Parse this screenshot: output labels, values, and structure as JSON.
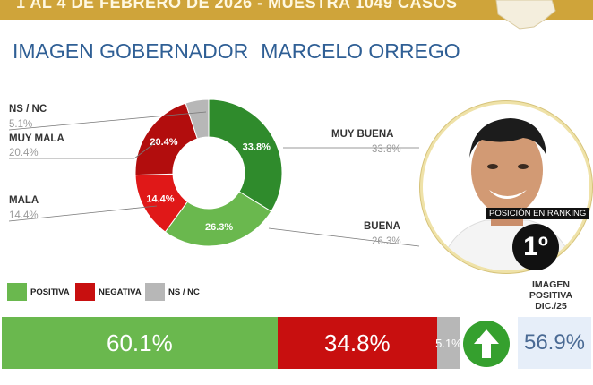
{
  "header": {
    "text": "1 AL 4 DE FEBRERO DE 2026 - MUESTRA 1049 CASOS"
  },
  "title": {
    "part1": "IMAGEN GOBERNADOR",
    "part2": "MARCELO ORREGO"
  },
  "colors": {
    "positiva": "#6ab84e",
    "negativa": "#c80f0f",
    "ns_nc": "#b7b7b7",
    "title": "#2f5f95",
    "gold": "#cfa43a"
  },
  "chart_data": [
    {
      "type": "pie",
      "slices": [
        {
          "label": "MUY BUENA",
          "value": 33.8,
          "display": "33.8%",
          "color": "#2f8b2c"
        },
        {
          "label": "BUENA",
          "value": 26.3,
          "display": "26.3%",
          "color": "#6ab84e"
        },
        {
          "label": "MALA",
          "value": 14.4,
          "display": "14.4%",
          "color": "#e01818"
        },
        {
          "label": "MUY MALA",
          "value": 20.4,
          "display": "20.4%",
          "color": "#b20d0d"
        },
        {
          "label": "NS / NC",
          "value": 5.1,
          "display": "5.1%",
          "color": "#b7b7b7"
        }
      ]
    },
    {
      "type": "bar",
      "orientation": "horizontal-stacked",
      "categories": [
        "POSITIVA",
        "NEGATIVA",
        "NS / NC"
      ],
      "values": [
        60.1,
        34.8,
        5.1
      ],
      "labels": [
        "60.1%",
        "34.8%",
        "5.1%"
      ]
    }
  ],
  "ranking": {
    "label": "POSICIÓN EN RANKING",
    "position": "1º"
  },
  "previous": {
    "heading": [
      "IMAGEN",
      "POSITIVA",
      "DIC./25"
    ],
    "value": "56.9%"
  },
  "trend_icon": "up-arrow-icon"
}
